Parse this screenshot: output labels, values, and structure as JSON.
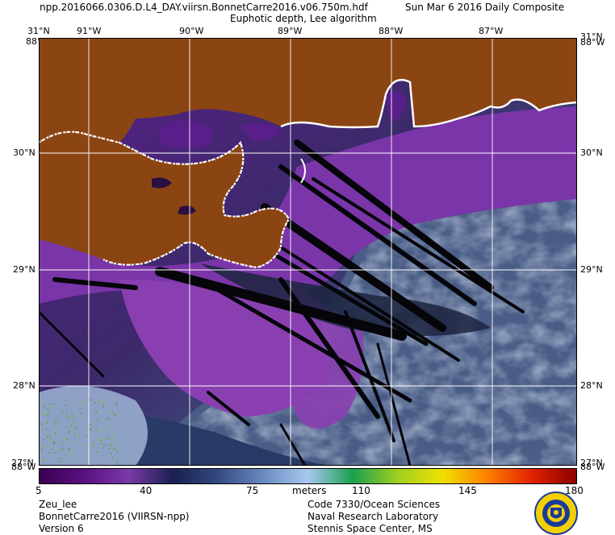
{
  "header": {
    "filename": "npp.2016066.0306.D.L4_DAY.viirsn.BonnetCarre2016.v06.750m.hdf",
    "date": "Sun Mar  6 2016 Daily Composite",
    "product": "Euphotic depth, Lee algorithm"
  },
  "map": {
    "lon_labels": [
      "91°W",
      "90°W",
      "89°W",
      "88°W",
      "87°W"
    ],
    "corner_top": "31°N",
    "corner_side": "88°W",
    "lat_labels": [
      "30°N",
      "29°N",
      "28°N"
    ],
    "corner_bottom": "88°W",
    "corner_bottom_lat": "27°N",
    "colors": {
      "land": "#8b4513",
      "coast": "#ffffff",
      "deep_purple": "#5a1e8a",
      "mid_purple": "#8a3fb0",
      "dark_navy": "#1c2440",
      "slate": "#4a5d86",
      "pale_blue": "#9fb4d6",
      "grid": "#ffffff"
    }
  },
  "colorbar": {
    "ticks": [
      "5",
      "40",
      "75",
      "110",
      "145",
      "180"
    ],
    "unit": "meters",
    "stops": [
      "#3a0050",
      "#5a1080",
      "#7a3aa8",
      "#1a2050",
      "#334a80",
      "#6a8ac0",
      "#a8c8f0",
      "#1aa050",
      "#a0d020",
      "#f0e000",
      "#ff8000",
      "#e02000",
      "#8a0000"
    ]
  },
  "footer": {
    "left": [
      "Zeu_lee",
      "BonnetCarre2016 (VIIRSN-npp)",
      "Version 6"
    ],
    "right": [
      "Code 7330/Ocean Sciences",
      "Naval Research Laboratory",
      "Stennis Space Center, MS"
    ]
  },
  "logo": {
    "name": "nrl-seal-icon",
    "colors": [
      "#f5d000",
      "#1a3a9a"
    ]
  }
}
